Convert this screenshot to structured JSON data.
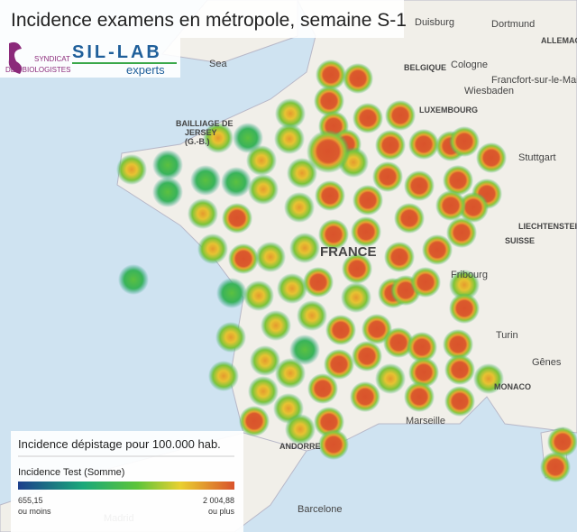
{
  "header": {
    "title": "Incidence examens en métropole, semaine S-1"
  },
  "logos": {
    "syndicat": [
      "SYNDICAT",
      "DES BIOLOGISTES"
    ],
    "sillab": "SIL-LAB",
    "experts": "experts"
  },
  "map_labels": {
    "countries": [
      "BELGIQUE",
      "LUXEMBOURG",
      "ALLEMAGNE",
      "SUISSE",
      "FRANCE",
      "ANDORRE",
      "MONACO",
      "LIECHTENSTEIN"
    ],
    "cities": [
      "Duisburg",
      "Dortmund",
      "Cologne",
      "Francfort-sur-le-Main",
      "Wiesbaden",
      "Stuttgart",
      "Fribourg",
      "Turin",
      "Gênes",
      "Marseille",
      "Barcelone",
      "Madrid"
    ],
    "jersey": [
      "BAILLIAGE DE",
      "JERSEY",
      "(G.-B.)"
    ],
    "sea": "Sea"
  },
  "legend": {
    "title": "Incidence dépistage pour 100.000 hab.",
    "field": "Incidence Test (Somme)",
    "min_label": "655,15",
    "min_note": "ou moins",
    "max_label": "2 004,88",
    "max_note": "ou plus"
  }
}
